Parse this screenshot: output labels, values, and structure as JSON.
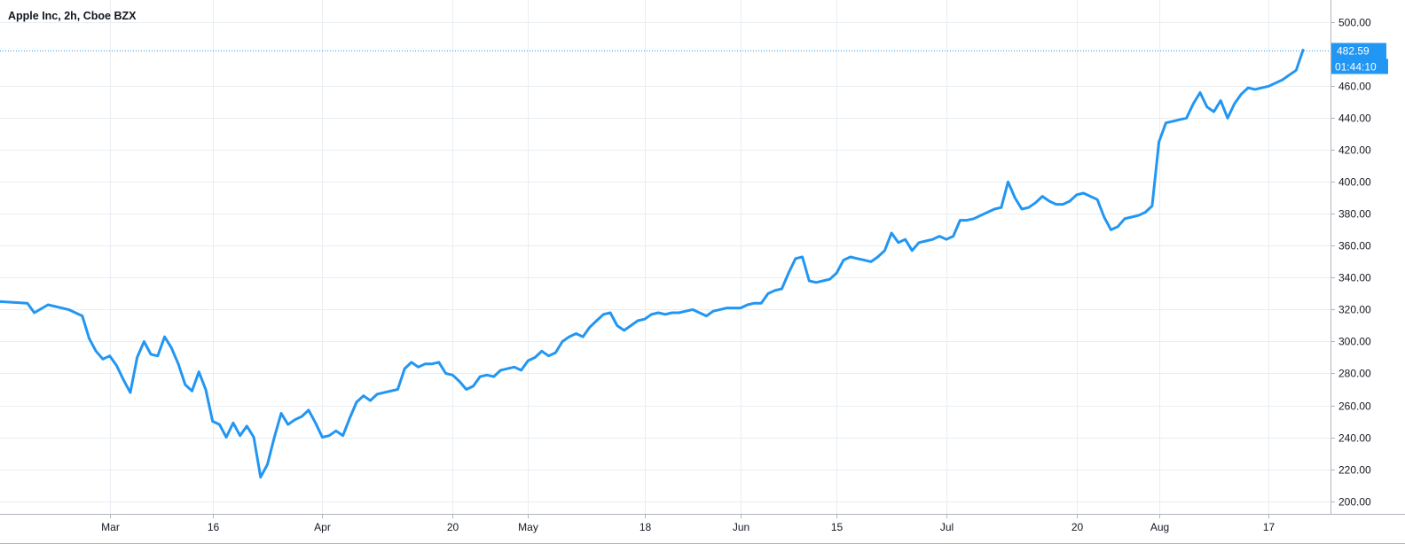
{
  "header": {
    "title": "Apple Inc, 2h, Cboe BZX"
  },
  "last_price": {
    "price_label": "482.59",
    "countdown": "01:44:10",
    "value": 482.59
  },
  "colors": {
    "line": "#2196f3",
    "grid": "#e9eef3",
    "axis": "#b2b5be",
    "text": "#131722",
    "label_bg": "#2196f3"
  },
  "chart_data": {
    "type": "line",
    "title": "Apple Inc, 2h, Cboe BZX",
    "ylim": [
      192,
      514
    ],
    "yticks": [
      200,
      220,
      240,
      260,
      280,
      300,
      320,
      340,
      360,
      380,
      400,
      420,
      440,
      460,
      500
    ],
    "ytick_labels": [
      "200.00",
      "220.00",
      "240.00",
      "260.00",
      "280.00",
      "300.00",
      "320.00",
      "340.00",
      "360.00",
      "380.00",
      "400.00",
      "420.00",
      "440.00",
      "460.00",
      "500.00"
    ],
    "xticks": [
      {
        "label": "Mar",
        "date": "2020-03-01"
      },
      {
        "label": "16",
        "date": "2020-03-16"
      },
      {
        "label": "Apr",
        "date": "2020-04-01"
      },
      {
        "label": "20",
        "date": "2020-04-20"
      },
      {
        "label": "May",
        "date": "2020-05-01"
      },
      {
        "label": "18",
        "date": "2020-05-18"
      },
      {
        "label": "Jun",
        "date": "2020-06-01"
      },
      {
        "label": "15",
        "date": "2020-06-15"
      },
      {
        "label": "Jul",
        "date": "2020-07-01"
      },
      {
        "label": "20",
        "date": "2020-07-20"
      },
      {
        "label": "Aug",
        "date": "2020-08-01"
      },
      {
        "label": "17",
        "date": "2020-08-17"
      }
    ],
    "grid": true,
    "series": [
      {
        "points": [
          [
            "2020-02-14",
            325
          ],
          [
            "2020-02-18",
            324
          ],
          [
            "2020-02-19",
            318
          ],
          [
            "2020-02-21",
            323
          ],
          [
            "2020-02-24",
            320
          ],
          [
            "2020-02-26",
            316
          ],
          [
            "2020-02-27",
            302
          ],
          [
            "2020-02-28",
            294
          ],
          [
            "2020-02-29",
            289
          ],
          [
            "2020-03-01",
            291
          ],
          [
            "2020-03-02",
            285
          ],
          [
            "2020-03-03",
            276
          ],
          [
            "2020-03-04",
            268
          ],
          [
            "2020-03-05",
            290
          ],
          [
            "2020-03-06",
            300
          ],
          [
            "2020-03-07",
            292
          ],
          [
            "2020-03-08",
            291
          ],
          [
            "2020-03-09",
            303
          ],
          [
            "2020-03-10",
            296
          ],
          [
            "2020-03-11",
            286
          ],
          [
            "2020-03-12",
            273
          ],
          [
            "2020-03-13",
            269
          ],
          [
            "2020-03-14",
            281
          ],
          [
            "2020-03-15",
            270
          ],
          [
            "2020-03-16",
            250
          ],
          [
            "2020-03-17",
            248
          ],
          [
            "2020-03-18",
            240
          ],
          [
            "2020-03-19",
            249
          ],
          [
            "2020-03-20",
            241
          ],
          [
            "2020-03-21",
            247
          ],
          [
            "2020-03-22",
            240
          ],
          [
            "2020-03-23",
            215
          ],
          [
            "2020-03-24",
            223
          ],
          [
            "2020-03-25",
            240
          ],
          [
            "2020-03-26",
            255
          ],
          [
            "2020-03-27",
            248
          ],
          [
            "2020-03-28",
            251
          ],
          [
            "2020-03-29",
            253
          ],
          [
            "2020-03-30",
            257
          ],
          [
            "2020-03-31",
            249
          ],
          [
            "2020-04-01",
            240
          ],
          [
            "2020-04-02",
            241
          ],
          [
            "2020-04-03",
            244
          ],
          [
            "2020-04-04",
            241
          ],
          [
            "2020-04-05",
            252
          ],
          [
            "2020-04-06",
            262
          ],
          [
            "2020-04-07",
            266
          ],
          [
            "2020-04-08",
            263
          ],
          [
            "2020-04-09",
            267
          ],
          [
            "2020-04-10",
            268
          ],
          [
            "2020-04-12",
            270
          ],
          [
            "2020-04-13",
            283
          ],
          [
            "2020-04-14",
            287
          ],
          [
            "2020-04-15",
            284
          ],
          [
            "2020-04-16",
            286
          ],
          [
            "2020-04-17",
            286
          ],
          [
            "2020-04-18",
            287
          ],
          [
            "2020-04-19",
            280
          ],
          [
            "2020-04-20",
            279
          ],
          [
            "2020-04-21",
            275
          ],
          [
            "2020-04-22",
            270
          ],
          [
            "2020-04-23",
            272
          ],
          [
            "2020-04-24",
            278
          ],
          [
            "2020-04-25",
            279
          ],
          [
            "2020-04-26",
            278
          ],
          [
            "2020-04-27",
            282
          ],
          [
            "2020-04-28",
            283
          ],
          [
            "2020-04-29",
            284
          ],
          [
            "2020-04-30",
            282
          ],
          [
            "2020-05-01",
            288
          ],
          [
            "2020-05-02",
            290
          ],
          [
            "2020-05-03",
            294
          ],
          [
            "2020-05-04",
            291
          ],
          [
            "2020-05-05",
            293
          ],
          [
            "2020-05-06",
            300
          ],
          [
            "2020-05-07",
            303
          ],
          [
            "2020-05-08",
            305
          ],
          [
            "2020-05-09",
            303
          ],
          [
            "2020-05-10",
            309
          ],
          [
            "2020-05-11",
            313
          ],
          [
            "2020-05-12",
            317
          ],
          [
            "2020-05-13",
            318
          ],
          [
            "2020-05-14",
            310
          ],
          [
            "2020-05-15",
            307
          ],
          [
            "2020-05-16",
            310
          ],
          [
            "2020-05-17",
            313
          ],
          [
            "2020-05-18",
            314
          ],
          [
            "2020-05-19",
            317
          ],
          [
            "2020-05-20",
            318
          ],
          [
            "2020-05-21",
            317
          ],
          [
            "2020-05-22",
            318
          ],
          [
            "2020-05-23",
            318
          ],
          [
            "2020-05-24",
            319
          ],
          [
            "2020-05-25",
            320
          ],
          [
            "2020-05-26",
            318
          ],
          [
            "2020-05-27",
            316
          ],
          [
            "2020-05-28",
            319
          ],
          [
            "2020-05-29",
            320
          ],
          [
            "2020-05-30",
            321
          ],
          [
            "2020-06-01",
            321
          ],
          [
            "2020-06-02",
            323
          ],
          [
            "2020-06-03",
            324
          ],
          [
            "2020-06-04",
            324
          ],
          [
            "2020-06-05",
            330
          ],
          [
            "2020-06-06",
            332
          ],
          [
            "2020-06-07",
            333
          ],
          [
            "2020-06-08",
            343
          ],
          [
            "2020-06-09",
            352
          ],
          [
            "2020-06-10",
            353
          ],
          [
            "2020-06-11",
            338
          ],
          [
            "2020-06-12",
            337
          ],
          [
            "2020-06-13",
            338
          ],
          [
            "2020-06-14",
            339
          ],
          [
            "2020-06-15",
            343
          ],
          [
            "2020-06-16",
            351
          ],
          [
            "2020-06-17",
            353
          ],
          [
            "2020-06-18",
            352
          ],
          [
            "2020-06-19",
            351
          ],
          [
            "2020-06-20",
            350
          ],
          [
            "2020-06-21",
            353
          ],
          [
            "2020-06-22",
            357
          ],
          [
            "2020-06-23",
            368
          ],
          [
            "2020-06-24",
            362
          ],
          [
            "2020-06-25",
            364
          ],
          [
            "2020-06-26",
            357
          ],
          [
            "2020-06-27",
            362
          ],
          [
            "2020-06-28",
            363
          ],
          [
            "2020-06-29",
            364
          ],
          [
            "2020-06-30",
            366
          ],
          [
            "2020-07-01",
            364
          ],
          [
            "2020-07-02",
            366
          ],
          [
            "2020-07-03",
            376
          ],
          [
            "2020-07-04",
            376
          ],
          [
            "2020-07-05",
            377
          ],
          [
            "2020-07-06",
            379
          ],
          [
            "2020-07-07",
            381
          ],
          [
            "2020-07-08",
            383
          ],
          [
            "2020-07-09",
            384
          ],
          [
            "2020-07-10",
            400
          ],
          [
            "2020-07-11",
            390
          ],
          [
            "2020-07-12",
            383
          ],
          [
            "2020-07-13",
            384
          ],
          [
            "2020-07-14",
            387
          ],
          [
            "2020-07-15",
            391
          ],
          [
            "2020-07-16",
            388
          ],
          [
            "2020-07-17",
            386
          ],
          [
            "2020-07-18",
            386
          ],
          [
            "2020-07-19",
            388
          ],
          [
            "2020-07-20",
            392
          ],
          [
            "2020-07-21",
            393
          ],
          [
            "2020-07-22",
            391
          ],
          [
            "2020-07-23",
            389
          ],
          [
            "2020-07-24",
            378
          ],
          [
            "2020-07-25",
            370
          ],
          [
            "2020-07-26",
            372
          ],
          [
            "2020-07-27",
            377
          ],
          [
            "2020-07-28",
            378
          ],
          [
            "2020-07-29",
            379
          ],
          [
            "2020-07-30",
            381
          ],
          [
            "2020-07-31",
            385
          ],
          [
            "2020-08-01",
            425
          ],
          [
            "2020-08-02",
            437
          ],
          [
            "2020-08-03",
            438
          ],
          [
            "2020-08-04",
            439
          ],
          [
            "2020-08-05",
            440
          ],
          [
            "2020-08-06",
            449
          ],
          [
            "2020-08-07",
            456
          ],
          [
            "2020-08-08",
            447
          ],
          [
            "2020-08-09",
            444
          ],
          [
            "2020-08-10",
            451
          ],
          [
            "2020-08-11",
            440
          ],
          [
            "2020-08-12",
            449
          ],
          [
            "2020-08-13",
            455
          ],
          [
            "2020-08-14",
            459
          ],
          [
            "2020-08-15",
            458
          ],
          [
            "2020-08-16",
            459
          ],
          [
            "2020-08-17",
            460
          ],
          [
            "2020-08-18",
            462
          ],
          [
            "2020-08-19",
            464
          ],
          [
            "2020-08-20",
            467
          ],
          [
            "2020-08-21",
            470
          ],
          [
            "2020-08-22",
            482.59
          ]
        ]
      }
    ]
  }
}
